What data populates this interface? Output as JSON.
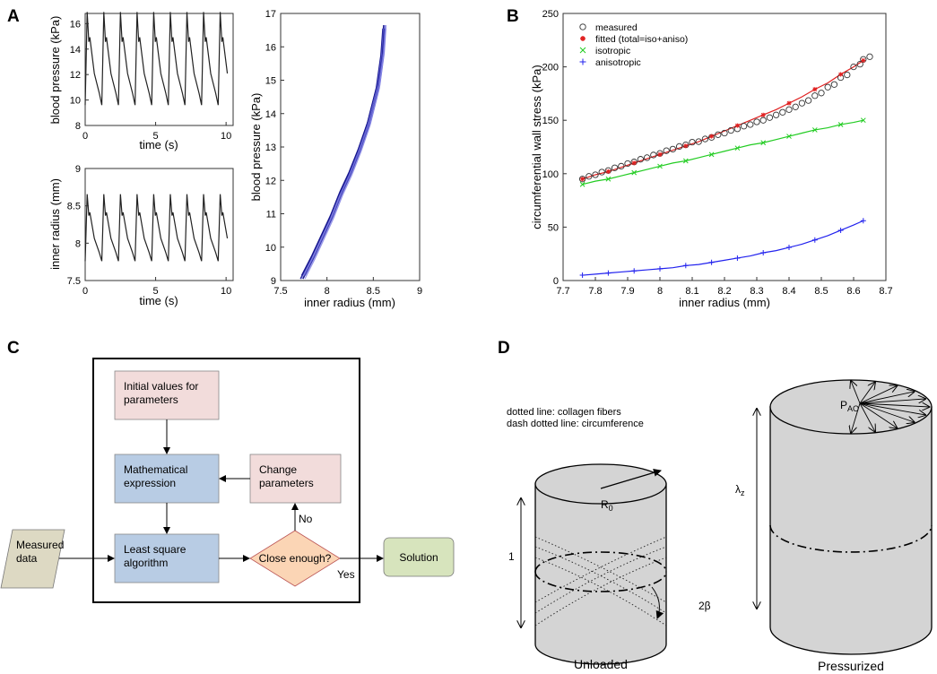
{
  "panel_labels": {
    "a": "A",
    "b": "B",
    "c": "C",
    "d": "D"
  },
  "chart_data": [
    {
      "id": "A1",
      "type": "line",
      "title": "",
      "xlabel": "time (s)",
      "ylabel": "blood pressure (kPa)",
      "xlim": [
        0,
        10.5
      ],
      "ylim": [
        8,
        16.8
      ],
      "xticks": [
        "0",
        "5",
        "10"
      ],
      "yticks": [
        "8",
        "10",
        "12",
        "14",
        "16"
      ],
      "cycles": 9,
      "period_s": 1.18,
      "min_value": 9.6,
      "max_value": 16.7,
      "series": [
        {
          "name": "blood pressure",
          "color": "#222222"
        }
      ]
    },
    {
      "id": "A2",
      "type": "line",
      "title": "",
      "xlabel": "time (s)",
      "ylabel": "inner radius (mm)",
      "xlim": [
        0,
        10.5
      ],
      "ylim": [
        7.5,
        9
      ],
      "xticks": [
        "0",
        "5",
        "10"
      ],
      "yticks": [
        "7.5",
        "8",
        "8.5",
        "9"
      ],
      "cycles": 9,
      "period_s": 1.18,
      "min_value": 7.76,
      "max_value": 8.63,
      "series": [
        {
          "name": "inner radius",
          "color": "#222222"
        }
      ]
    },
    {
      "id": "A3",
      "type": "line",
      "title": "",
      "xlabel": "inner radius (mm)",
      "ylabel": "blood pressure (kPa)",
      "xlim": [
        7.5,
        9
      ],
      "ylim": [
        9,
        17
      ],
      "xticks": [
        "7.5",
        "8",
        "8.5",
        "9"
      ],
      "yticks": [
        "9",
        "10",
        "11",
        "12",
        "13",
        "14",
        "15",
        "16",
        "17"
      ],
      "x": [
        7.74,
        7.85,
        7.95,
        8.05,
        8.15,
        8.25,
        8.35,
        8.45,
        8.55,
        8.6,
        8.62
      ],
      "y": [
        9.1,
        9.7,
        10.3,
        10.9,
        11.6,
        12.2,
        12.9,
        13.7,
        14.8,
        15.8,
        16.6
      ],
      "series": [
        {
          "name": "pressure-radius loops",
          "color": "#1a1aaa"
        }
      ]
    },
    {
      "id": "B",
      "type": "scatter",
      "title": "",
      "xlabel": "inner radius (mm)",
      "ylabel": "circumferential wall stress (kPa)",
      "xlim": [
        7.7,
        8.7
      ],
      "ylim": [
        0,
        250
      ],
      "xticks": [
        "7.7",
        "7.8",
        "7.9",
        "8",
        "8.1",
        "8.2",
        "8.3",
        "8.4",
        "8.5",
        "8.6",
        "8.7"
      ],
      "yticks": [
        "0",
        "50",
        "100",
        "150",
        "200",
        "250"
      ],
      "legend": [
        "measured",
        "fitted (total=iso+aniso)",
        "isotropic",
        "anisotropic"
      ],
      "x": [
        7.76,
        7.8,
        7.84,
        7.88,
        7.92,
        7.96,
        8.0,
        8.04,
        8.08,
        8.12,
        8.16,
        8.2,
        8.24,
        8.28,
        8.32,
        8.36,
        8.4,
        8.44,
        8.48,
        8.52,
        8.56,
        8.6,
        8.63
      ],
      "series": [
        {
          "name": "measured",
          "color": "#333333",
          "values": [
            95,
            99,
            103,
            107,
            111,
            115,
            119,
            123,
            127,
            130,
            134,
            138,
            142,
            146,
            150,
            155,
            160,
            166,
            173,
            181,
            190,
            200,
            207
          ]
        },
        {
          "name": "isotropic",
          "color": "#22cc22",
          "values": [
            90,
            93,
            95,
            98,
            101,
            104,
            107,
            110,
            112,
            115,
            118,
            121,
            124,
            127,
            129,
            132,
            135,
            138,
            141,
            143,
            146,
            148,
            150
          ]
        },
        {
          "name": "anisotropic",
          "color": "#2222ee",
          "values": [
            5,
            6,
            7,
            8,
            9,
            10,
            11,
            12,
            14,
            15,
            17,
            19,
            21,
            23,
            26,
            28,
            31,
            34,
            38,
            42,
            47,
            52,
            56
          ]
        },
        {
          "name": "fitted (total=iso+aniso)",
          "color": "#e02020",
          "values": [
            95,
            99,
            102,
            106,
            110,
            114,
            118,
            122,
            126,
            130,
            135,
            140,
            145,
            150,
            155,
            160,
            166,
            172,
            179,
            185,
            193,
            200,
            206
          ]
        }
      ]
    }
  ],
  "flowchart": {
    "initial_values": "Initial values for parameters",
    "math_expr": "Mathematical expression",
    "change_params": "Change parameters",
    "least_square": "Least square algorithm",
    "close_enough": "Close enough?",
    "measured_data": "Measured data",
    "solution": "Solution",
    "no": "No",
    "yes": "Yes",
    "colors": {
      "pink": "#f2dcdb",
      "blue": "#b8cce4",
      "orange": "#fbd5b5",
      "tan": "#ddd9c3",
      "green": "#d7e4bd"
    }
  },
  "cylinders": {
    "legend_line1": "dotted line: collagen fibers",
    "legend_line2": "dash dotted line: circumference",
    "r0": "R",
    "r0_sub": "0",
    "one": "1",
    "two_beta": "2β",
    "lambda": "λ",
    "lambda_sub": "z",
    "pao": "P",
    "pao_sub": "AO",
    "unloaded": "Unloaded",
    "pressurized": "Pressurized"
  }
}
